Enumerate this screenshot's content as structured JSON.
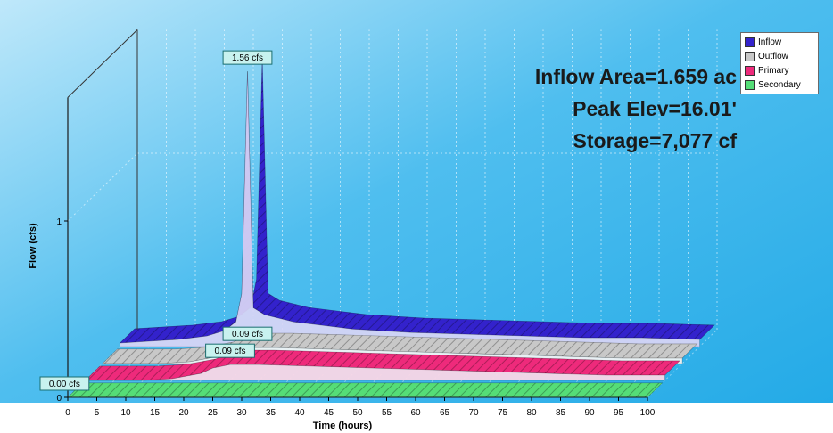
{
  "chart_data": {
    "type": "area",
    "xlabel": "Time  (hours)",
    "ylabel": "Flow  (cfs)",
    "xlim": [
      0,
      100
    ],
    "ylim": [
      0,
      1.7
    ],
    "x_ticks": [
      "0",
      "5",
      "10",
      "15",
      "20",
      "25",
      "30",
      "35",
      "40",
      "45",
      "50",
      "55",
      "60",
      "65",
      "70",
      "75",
      "80",
      "85",
      "90",
      "95",
      "100"
    ],
    "y_ticks": [
      "0",
      "1"
    ],
    "grid": true,
    "legend_position": "top-right",
    "series": [
      {
        "name": "Inflow",
        "color": "#3322cc",
        "x": [
          0,
          5,
          10,
          15,
          18,
          20,
          21,
          22,
          23,
          25,
          30,
          40,
          50,
          60,
          70,
          80,
          90,
          100
        ],
        "y": [
          0.02,
          0.03,
          0.04,
          0.06,
          0.09,
          0.14,
          0.3,
          1.56,
          0.22,
          0.18,
          0.14,
          0.1,
          0.08,
          0.07,
          0.06,
          0.05,
          0.05,
          0.04
        ]
      },
      {
        "name": "Outflow",
        "color": "#c8c8c8",
        "x": [
          0,
          10,
          15,
          20,
          22,
          25,
          30,
          40,
          50,
          60,
          70,
          80,
          90,
          100
        ],
        "y": [
          0.0,
          0.0,
          0.01,
          0.04,
          0.07,
          0.09,
          0.09,
          0.08,
          0.07,
          0.06,
          0.05,
          0.04,
          0.03,
          0.03
        ]
      },
      {
        "name": "Primary",
        "color": "#ee2a7b",
        "x": [
          0,
          10,
          15,
          20,
          22,
          25,
          30,
          40,
          50,
          60,
          70,
          80,
          90,
          100
        ],
        "y": [
          0.0,
          0.0,
          0.01,
          0.04,
          0.07,
          0.09,
          0.09,
          0.08,
          0.07,
          0.06,
          0.05,
          0.04,
          0.03,
          0.03
        ]
      },
      {
        "name": "Secondary",
        "color": "#55dd77",
        "x": [
          0,
          100
        ],
        "y": [
          0.0,
          0.0
        ]
      }
    ],
    "annotations": [
      {
        "text": "1.56 cfs",
        "series": "Inflow",
        "x": 22,
        "y": 1.56
      },
      {
        "text": "0.09 cfs",
        "series": "Outflow",
        "x": 25,
        "y": 0.09
      },
      {
        "text": "0.09 cfs",
        "series": "Primary",
        "x": 25,
        "y": 0.09
      },
      {
        "text": "0.00 cfs",
        "series": "Secondary",
        "x": 0,
        "y": 0.0
      }
    ],
    "info_lines": [
      "Inflow Area=1.659 ac",
      "Peak Elev=16.01'",
      "Storage=7,077 cf"
    ]
  }
}
